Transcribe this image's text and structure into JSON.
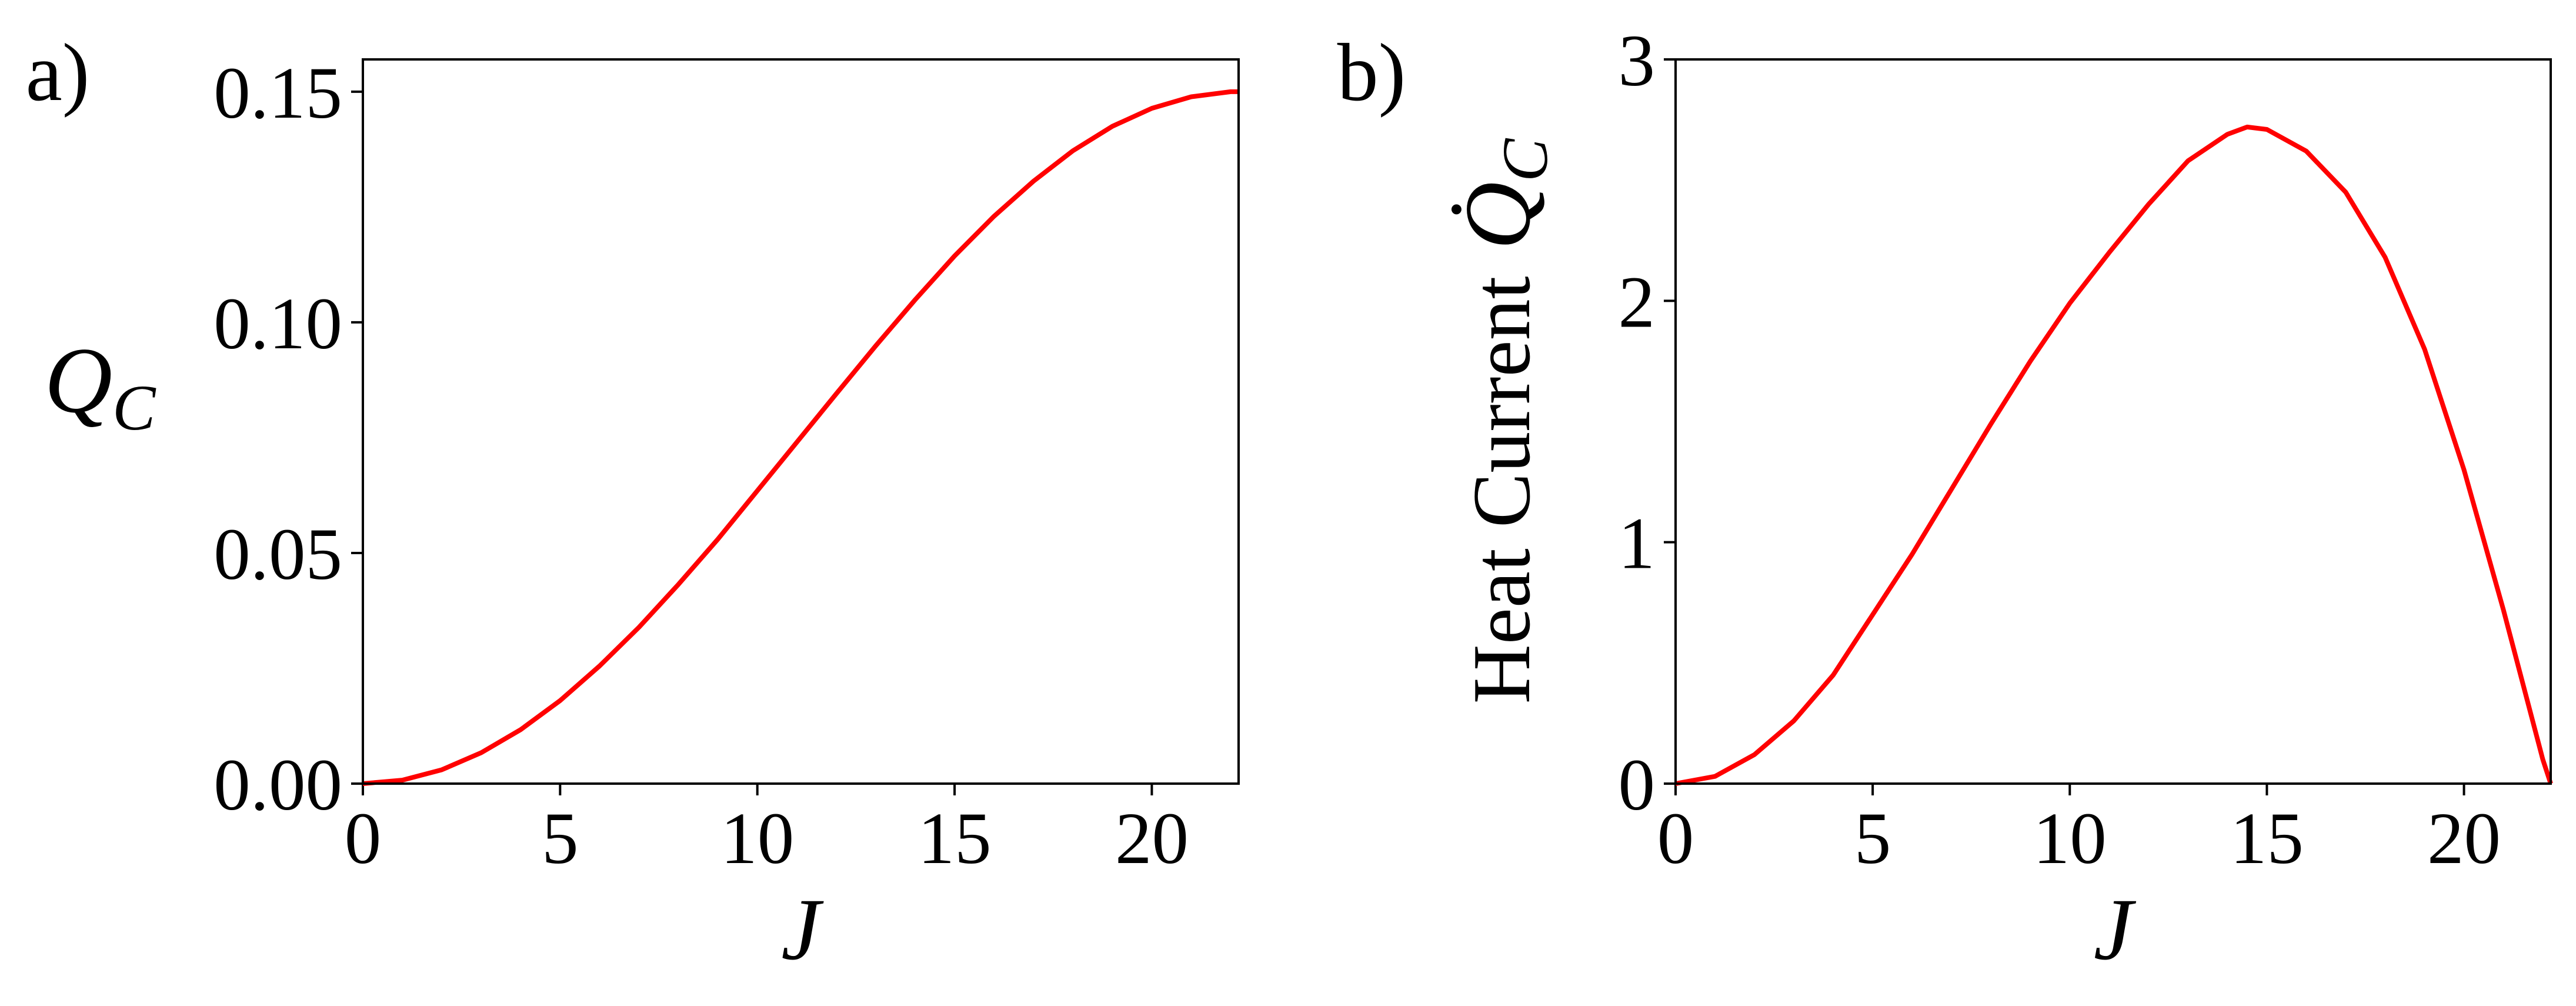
{
  "chart_data": [
    {
      "type": "line",
      "panel_label": "a)",
      "xlabel": "J",
      "ylabel_symbol": "Q",
      "ylabel_sub": "C",
      "color": "#ff0000",
      "x": [
        0,
        1,
        2,
        3,
        4,
        5,
        6,
        7,
        8,
        9,
        10,
        11,
        12,
        13,
        14,
        15,
        16,
        17,
        18,
        19,
        20,
        21,
        22,
        22.2
      ],
      "values": [
        0,
        0.00075,
        0.003,
        0.0067,
        0.0117,
        0.018,
        0.0255,
        0.0339,
        0.0432,
        0.053,
        0.0635,
        0.074,
        0.0845,
        0.0949,
        0.1049,
        0.1144,
        0.123,
        0.1306,
        0.1372,
        0.1425,
        0.1464,
        0.1489,
        0.15,
        0.15
      ],
      "xlim": [
        0,
        22.2
      ],
      "ylim": [
        0,
        0.157
      ],
      "xticks": [
        0,
        5,
        10,
        15,
        20
      ],
      "yticks": [
        {
          "value": 0,
          "label": "0.00"
        },
        {
          "value": 0.05,
          "label": "0.05"
        },
        {
          "value": 0.1,
          "label": "0.10"
        },
        {
          "value": 0.15,
          "label": "0.15"
        }
      ]
    },
    {
      "type": "line",
      "panel_label": "b)",
      "xlabel": "J",
      "ylabel_text": "Heat Current",
      "ylabel_symbol": "Q̇",
      "ylabel_sub": "C",
      "color": "#ff0000",
      "x": [
        0,
        1,
        2,
        3,
        4,
        5,
        6,
        7,
        8,
        9,
        10,
        11,
        12,
        13,
        14,
        14.5,
        15,
        16,
        17,
        18,
        19,
        20,
        21,
        22,
        22.2
      ],
      "values": [
        0,
        0.03,
        0.12,
        0.26,
        0.45,
        0.7,
        0.95,
        1.22,
        1.49,
        1.75,
        1.99,
        2.2,
        2.4,
        2.58,
        2.69,
        2.72,
        2.71,
        2.62,
        2.45,
        2.18,
        1.8,
        1.3,
        0.72,
        0.1,
        0
      ],
      "xlim": [
        0,
        22.2
      ],
      "ylim": [
        0,
        3
      ],
      "xticks": [
        0,
        5,
        10,
        15,
        20
      ],
      "yticks": [
        0,
        1,
        2,
        3
      ]
    }
  ]
}
